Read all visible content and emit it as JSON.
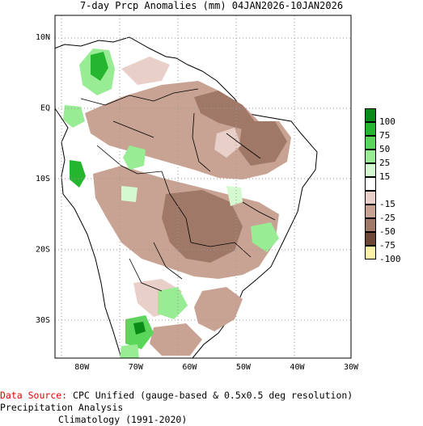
{
  "title": "7-day Prcp Anomalies (mm) 04JAN2026-10JAN2026",
  "lat_ticks": [
    {
      "label": "10N",
      "lat": 10
    },
    {
      "label": "EQ",
      "lat": 0
    },
    {
      "label": "10S",
      "lat": -10
    },
    {
      "label": "20S",
      "lat": -20
    },
    {
      "label": "30S",
      "lat": -30
    }
  ],
  "lon_ticks": [
    {
      "label": "80W",
      "lon": -80
    },
    {
      "label": "70W",
      "lon": -70
    },
    {
      "label": "60W",
      "lon": -60
    },
    {
      "label": "50W",
      "lon": -50
    },
    {
      "label": "40W",
      "lon": -40
    },
    {
      "label": "30W",
      "lon": -30
    }
  ],
  "legend": [
    {
      "label": "100",
      "color": "#0a8a16"
    },
    {
      "label": "75",
      "color": "#26b52e"
    },
    {
      "label": "50",
      "color": "#5ad75a"
    },
    {
      "label": "25",
      "color": "#97ec94"
    },
    {
      "label": "15",
      "color": "#d4f8d0"
    },
    {
      "label": "",
      "color": "#ffffff"
    },
    {
      "label": "-15",
      "color": "#e8cfc8"
    },
    {
      "label": "-25",
      "color": "#c8a393"
    },
    {
      "label": "-50",
      "color": "#a07868"
    },
    {
      "label": "-75",
      "color": "#6e4638"
    },
    {
      "label": "-100",
      "color": "#fdf3a8"
    }
  ],
  "colors": {
    "land": "#ffffff",
    "ocean": "#ffffff",
    "grid": "#999999",
    "dry_light": "#e8cfc8",
    "dry_mid": "#c8a393",
    "dry_dark": "#a07868",
    "wet_light": "#d4f8d0",
    "wet_mid": "#97ec94",
    "wet_strong": "#5ad75a",
    "wet_heavy": "#26b52e",
    "wet_max": "#0a8a16"
  },
  "footer": {
    "source_label": "Data Source:",
    "source_text": "CPC Unified (gauge-based & 0.5x0.5 deg resolution) Precipitation Analysis",
    "climatology": "Climatology (1991-2020)"
  }
}
